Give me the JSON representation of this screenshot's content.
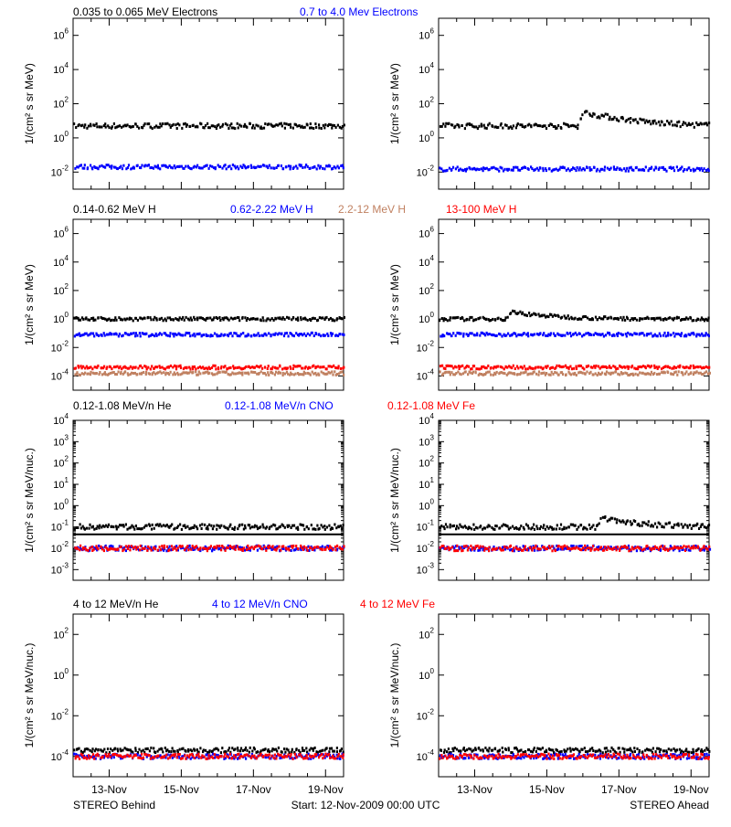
{
  "colors": {
    "black": "#000000",
    "blue": "#0000ff",
    "tan": "#c08060",
    "red": "#ff0000",
    "grey": "#c0a090"
  },
  "footer": {
    "left": "STEREO Behind",
    "center": "Start: 12-Nov-2009 00:00 UTC",
    "right": "STEREO Ahead"
  },
  "x_tick_labels": [
    "13-Nov",
    "15-Nov",
    "17-Nov",
    "19-Nov"
  ],
  "rows": [
    {
      "legend": [
        {
          "text": "0.035 to 0.065 MeV Electrons",
          "color": "#000000"
        },
        {
          "text": "0.7 to 4.0 Mev Electrons",
          "color": "#0000ff"
        }
      ],
      "ylabel": "1/(cm² s sr MeV)"
    },
    {
      "legend": [
        {
          "text": "0.14-0.62 MeV H",
          "color": "#000000"
        },
        {
          "text": "0.62-2.22 MeV H",
          "color": "#0000ff"
        },
        {
          "text": "2.2-12 MeV H",
          "color": "#c08060"
        },
        {
          "text": "13-100 MeV H",
          "color": "#ff0000"
        }
      ],
      "ylabel": "1/(cm² s sr MeV)"
    },
    {
      "legend": [
        {
          "text": "0.12-1.08 MeV/n He",
          "color": "#000000"
        },
        {
          "text": "0.12-1.08 MeV/n CNO",
          "color": "#0000ff"
        },
        {
          "text": "0.12-1.08 MeV Fe",
          "color": "#ff0000"
        }
      ],
      "ylabel": "1/(cm² s sr MeV/nuc.)"
    },
    {
      "legend": [
        {
          "text": "4 to 12 MeV/n He",
          "color": "#000000"
        },
        {
          "text": "4 to 12 MeV/n CNO",
          "color": "#0000ff"
        },
        {
          "text": "4 to 12 MeV Fe",
          "color": "#ff0000"
        }
      ],
      "ylabel": "1/(cm² s sr MeV/nuc.)"
    }
  ],
  "chart_data": [
    {
      "type": "scatter",
      "row": 0,
      "spacecraft": "STEREO Behind",
      "log_y": true,
      "ylim_exp": [
        -3,
        7
      ],
      "tick_exps": [
        -2,
        0,
        2,
        4,
        6
      ],
      "xlim_days": [
        0,
        7.5
      ],
      "series": [
        {
          "name": "0.035 to 0.065 MeV Electrons",
          "color": "#000000",
          "baseline": 5.0
        },
        {
          "name": "0.7 to 4.0 Mev Electrons",
          "color": "#0000ff",
          "baseline": 0.02
        }
      ]
    },
    {
      "type": "scatter",
      "row": 0,
      "spacecraft": "STEREO Ahead",
      "log_y": true,
      "ylim_exp": [
        -3,
        7
      ],
      "tick_exps": [
        -2,
        0,
        2,
        4,
        6
      ],
      "xlim_days": [
        0,
        7.5
      ],
      "series": [
        {
          "name": "0.035 to 0.065 MeV Electrons",
          "color": "#000000",
          "baseline": 5.0,
          "event": {
            "day": 4.0,
            "peak": 30
          }
        },
        {
          "name": "0.7 to 4.0 Mev Electrons",
          "color": "#0000ff",
          "baseline": 0.015
        }
      ]
    },
    {
      "type": "scatter",
      "row": 1,
      "spacecraft": "STEREO Behind",
      "log_y": true,
      "ylim_exp": [
        -5,
        7
      ],
      "tick_exps": [
        -4,
        -2,
        0,
        2,
        4,
        6
      ],
      "xlim_days": [
        0,
        7.5
      ],
      "series": [
        {
          "name": "0.14-0.62 MeV H",
          "color": "#000000",
          "baseline": 1.0
        },
        {
          "name": "0.62-2.22 MeV H",
          "color": "#0000ff",
          "baseline": 0.08
        },
        {
          "name": "2.2-12 MeV H",
          "color": "#c08060",
          "baseline": 0.00015
        },
        {
          "name": "13-100 MeV H",
          "color": "#ff0000",
          "baseline": 0.0004
        }
      ]
    },
    {
      "type": "scatter",
      "row": 1,
      "spacecraft": "STEREO Ahead",
      "log_y": true,
      "ylim_exp": [
        -5,
        7
      ],
      "tick_exps": [
        -4,
        -2,
        0,
        2,
        4,
        6
      ],
      "xlim_days": [
        0,
        7.5
      ],
      "series": [
        {
          "name": "0.14-0.62 MeV H",
          "color": "#000000",
          "baseline": 1.0,
          "event": {
            "day": 2.0,
            "peak": 3
          }
        },
        {
          "name": "0.62-2.22 MeV H",
          "color": "#0000ff",
          "baseline": 0.08
        },
        {
          "name": "2.2-12 MeV H",
          "color": "#c08060",
          "baseline": 0.00015
        },
        {
          "name": "13-100 MeV H",
          "color": "#ff0000",
          "baseline": 0.0004
        }
      ]
    },
    {
      "type": "scatter",
      "row": 2,
      "spacecraft": "STEREO Behind",
      "log_y": true,
      "ylim_exp": [
        -3.5,
        4
      ],
      "tick_exps": [
        -3,
        -2,
        -1,
        0,
        1,
        2,
        3,
        4
      ],
      "xlim_days": [
        0,
        7.5
      ],
      "series": [
        {
          "name": "0.12-1.08 MeV/n He",
          "color": "#000000",
          "baseline": 0.1,
          "floor": 0.045
        },
        {
          "name": "0.12-1.08 MeV/n CNO",
          "color": "#0000ff",
          "baseline": 0.01
        },
        {
          "name": "0.12-1.08 MeV Fe",
          "color": "#ff0000",
          "baseline": 0.01
        }
      ]
    },
    {
      "type": "scatter",
      "row": 2,
      "spacecraft": "STEREO Ahead",
      "log_y": true,
      "ylim_exp": [
        -3.5,
        4
      ],
      "tick_exps": [
        -3,
        -2,
        -1,
        0,
        1,
        2,
        3,
        4
      ],
      "xlim_days": [
        0,
        7.5
      ],
      "series": [
        {
          "name": "0.12-1.08 MeV/n He",
          "color": "#000000",
          "baseline": 0.1,
          "floor": 0.045,
          "event": {
            "day": 4.5,
            "peak": 0.25
          }
        },
        {
          "name": "0.12-1.08 MeV/n CNO",
          "color": "#0000ff",
          "baseline": 0.01
        },
        {
          "name": "0.12-1.08 MeV Fe",
          "color": "#ff0000",
          "baseline": 0.01
        }
      ]
    },
    {
      "type": "scatter",
      "row": 3,
      "spacecraft": "STEREO Behind",
      "log_y": true,
      "ylim_exp": [
        -5,
        3
      ],
      "tick_exps": [
        -4,
        -2,
        0,
        2
      ],
      "xlim_days": [
        0,
        7.5
      ],
      "series": [
        {
          "name": "4 to 12 MeV/n He",
          "color": "#000000",
          "baseline": 0.0002
        },
        {
          "name": "4 to 12 MeV/n CNO",
          "color": "#0000ff",
          "baseline": 0.0001
        },
        {
          "name": "4 to 12 MeV Fe",
          "color": "#ff0000",
          "baseline": 0.0001
        }
      ]
    },
    {
      "type": "scatter",
      "row": 3,
      "spacecraft": "STEREO Ahead",
      "log_y": true,
      "ylim_exp": [
        -5,
        3
      ],
      "tick_exps": [
        -4,
        -2,
        0,
        2
      ],
      "xlim_days": [
        0,
        7.5
      ],
      "series": [
        {
          "name": "4 to 12 MeV/n He",
          "color": "#000000",
          "baseline": 0.0002
        },
        {
          "name": "4 to 12 MeV/n CNO",
          "color": "#0000ff",
          "baseline": 0.0001
        },
        {
          "name": "4 to 12 MeV Fe",
          "color": "#ff0000",
          "baseline": 0.0001
        }
      ]
    }
  ]
}
